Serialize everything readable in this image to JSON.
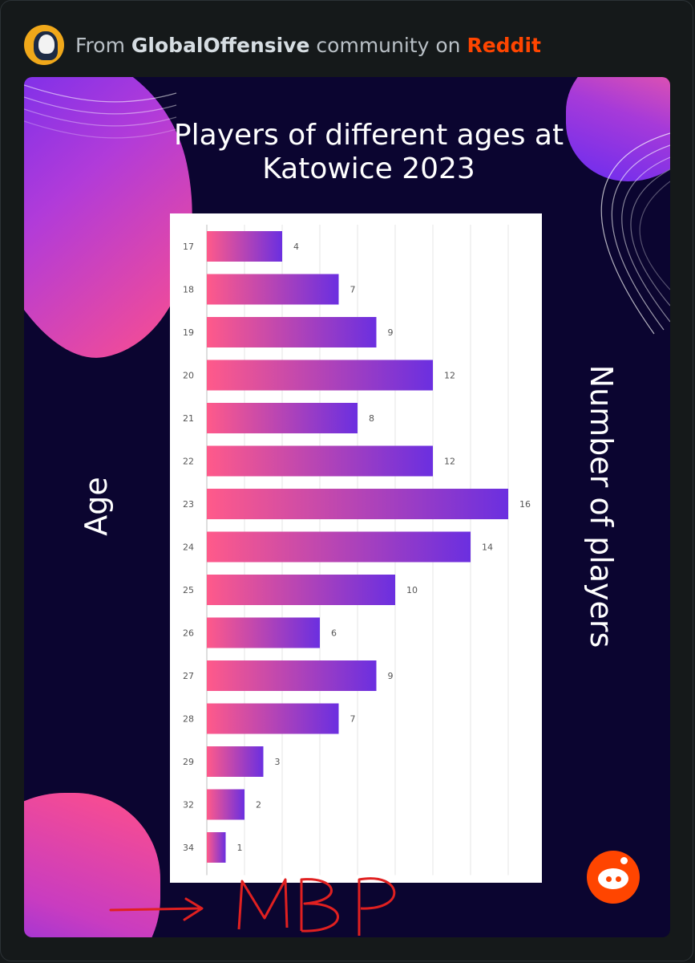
{
  "header": {
    "prefix": "From",
    "community": "GlobalOffensive",
    "middle": "community on",
    "site": "Reddit"
  },
  "colors": {
    "bar_gradient_start": "#ff5a8a",
    "bar_gradient_end": "#6b2fe0",
    "background": "#0b0530",
    "site_accent": "#ff4500"
  },
  "icons": {
    "avatar": "community-avatar-icon",
    "logo": "reddit-snoo-icon"
  },
  "annotation": {
    "text": "MBP"
  },
  "chart_data": {
    "type": "bar",
    "orientation": "horizontal",
    "title": "Players of different ages at Katowice 2023",
    "ylabel": "Age",
    "xlabel": "Number of players",
    "categories": [
      "17",
      "18",
      "19",
      "20",
      "21",
      "22",
      "23",
      "24",
      "25",
      "26",
      "27",
      "28",
      "29",
      "32",
      "34"
    ],
    "values": [
      4,
      7,
      9,
      12,
      8,
      12,
      16,
      14,
      10,
      6,
      9,
      7,
      3,
      2,
      1
    ],
    "xlim": [
      0,
      16
    ],
    "grid": true,
    "data_labels": true
  }
}
